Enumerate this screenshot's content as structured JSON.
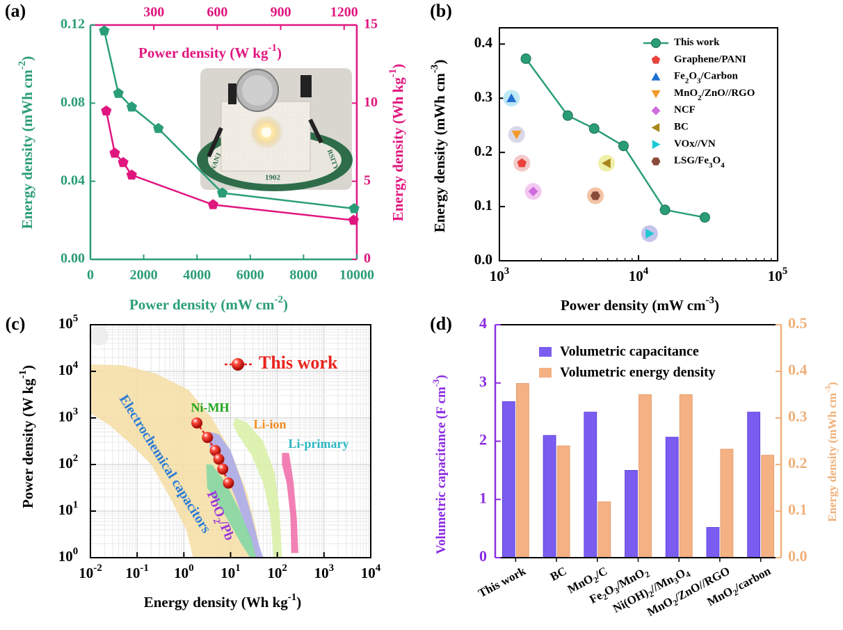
{
  "colors": {
    "teal": "#2a9d78",
    "magenta": "#e0167f",
    "purple": "#8b2be2",
    "bar_blue": "#7a5cf0",
    "bar_orange": "#f4b183",
    "orange_axis": "#f0b07a",
    "red_point": "#e8231c"
  },
  "chart_data": [
    {
      "panel": "(a)",
      "type": "line",
      "xlabel": "Power density (mW cm-2)",
      "ylabel_left": "Energy density (mWh cm-2)",
      "xlabel_top": "Power density (W kg-1)",
      "ylabel_right": "Energy density (Wh kg-1)",
      "xlim": [
        0,
        10000
      ],
      "ylim_left": [
        0,
        0.12
      ],
      "xlim_top": [
        0,
        1260
      ],
      "ylim_right": [
        0,
        15
      ],
      "x_ticks": [
        "0",
        "2000",
        "4000",
        "6000",
        "8000",
        "10000"
      ],
      "y_ticks_left": [
        "0.00",
        "0.04",
        "0.08",
        "0.12"
      ],
      "x_ticks_top": [
        "300",
        "600",
        "900",
        "1200"
      ],
      "y_ticks_right": [
        "0",
        "5",
        "10",
        "15"
      ],
      "series": [
        {
          "axis": "bottom-left",
          "x": [
            520,
            1050,
            1550,
            2550,
            4950,
            9900
          ],
          "y": [
            0.117,
            0.085,
            0.078,
            0.067,
            0.034,
            0.026
          ]
        },
        {
          "axis": "top-right",
          "x": [
            75,
            115,
            155,
            195,
            580,
            1245
          ],
          "y": [
            9.5,
            6.8,
            6.2,
            5.4,
            3.5,
            2.5
          ]
        }
      ],
      "inset": "photo of coin-cell device lighting an LED",
      "inset_text": [
        "NANJ",
        "RSITY",
        "1902"
      ]
    },
    {
      "panel": "(b)",
      "type": "scatter",
      "xlabel": "Power density (mW cm-3)",
      "ylabel": "Energy density (mWh cm-3)",
      "xscale": "log",
      "xlim": [
        1000,
        100000
      ],
      "ylim": [
        0,
        0.43
      ],
      "x_ticks": [
        "10^3",
        "10^4",
        "10^5"
      ],
      "y_ticks": [
        "0.0",
        "0.1",
        "0.2",
        "0.3",
        "0.4"
      ],
      "legend_position": "top-right",
      "series": [
        {
          "name": "This work",
          "x": [
            1550,
            3100,
            4800,
            7800,
            15500,
            30000
          ],
          "y": [
            0.373,
            0.268,
            0.244,
            0.212,
            0.094,
            0.08
          ]
        },
        {
          "name": "Graphene/PANI",
          "x": [
            1450
          ],
          "y": [
            0.18
          ]
        },
        {
          "name": "Fe2O3/Carbon",
          "x": [
            1220
          ],
          "y": [
            0.3
          ]
        },
        {
          "name": "MnO2/ZnO//RGO",
          "x": [
            1330
          ],
          "y": [
            0.233
          ]
        },
        {
          "name": "NCF",
          "x": [
            1750
          ],
          "y": [
            0.128
          ]
        },
        {
          "name": "BC",
          "x": [
            5900
          ],
          "y": [
            0.18
          ]
        },
        {
          "name": "VOx//VN",
          "x": [
            12000
          ],
          "y": [
            0.05
          ]
        },
        {
          "name": "LSG/Fe3O4",
          "x": [
            4900
          ],
          "y": [
            0.12
          ]
        }
      ]
    },
    {
      "panel": "(c)",
      "type": "scatter",
      "xlabel": "Energy density (Wh kg-1)",
      "ylabel": "Power density (W kg-1)",
      "xscale": "log",
      "yscale": "log",
      "xlim": [
        0.01,
        10000
      ],
      "ylim": [
        1,
        100000
      ],
      "x_ticks": [
        "10^-2",
        "10^-1",
        "10^0",
        "10^1",
        "10^2",
        "10^3",
        "10^4"
      ],
      "y_ticks": [
        "10^0",
        "10^1",
        "10^2",
        "10^3",
        "10^4",
        "10^5"
      ],
      "regions": [
        "Electrochemical capacitors",
        "Ni-MH",
        "PbO2/Pb",
        "Li-ion",
        "Li-primary"
      ],
      "series": [
        {
          "name": "This work",
          "x": [
            1.9,
            3.2,
            4.7,
            5.6,
            6.8,
            9.0
          ],
          "y": [
            780,
            380,
            200,
            130,
            80,
            40
          ]
        }
      ]
    },
    {
      "panel": "(d)",
      "type": "bar",
      "ylabel_left": "Volumetric capacitance (F cm-3)",
      "ylabel_right": "Energy density (mWh cm-3)",
      "ylim_left": [
        0,
        4
      ],
      "ylim_right": [
        0,
        0.5
      ],
      "y_ticks_left": [
        "0",
        "1",
        "2",
        "3",
        "4"
      ],
      "y_ticks_right": [
        "0.0",
        "0.1",
        "0.2",
        "0.3",
        "0.4",
        "0.5"
      ],
      "legend_position": "top",
      "categories": [
        "This work",
        "BC",
        "MnO2/C",
        "Fe2O3/MnO2",
        "Ni(OH)2//Mn3O4",
        "MnO2/ZnO//RGO",
        "MnO2/carbon"
      ],
      "series": [
        {
          "name": "Volumetric capacitance",
          "axis": "left",
          "values": [
            2.68,
            2.1,
            2.5,
            1.5,
            2.07,
            0.52,
            2.5
          ]
        },
        {
          "name": "Volumetric energy density",
          "axis": "right",
          "values": [
            0.374,
            0.24,
            0.12,
            0.35,
            0.35,
            0.233,
            0.22
          ]
        }
      ]
    }
  ]
}
